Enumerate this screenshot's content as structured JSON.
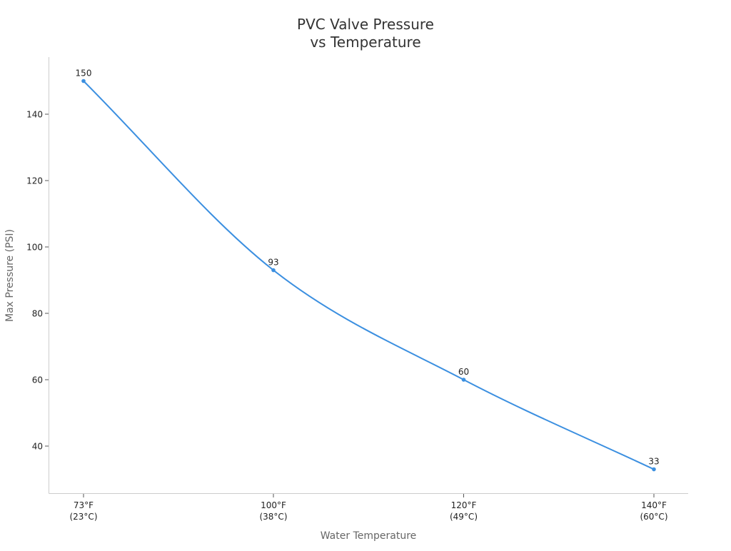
{
  "chart_data": {
    "type": "line",
    "title": "PVC Valve Pressure\nvs Temperature",
    "title_lines": [
      "PVC Valve Pressure",
      "vs Temperature"
    ],
    "xlabel": "Water Temperature",
    "ylabel": "Max Pressure (PSI)",
    "categories": [
      "73°F\n(23°C)",
      "100°F\n(38°C)",
      "120°F\n(49°C)",
      "140°F\n(60°C)"
    ],
    "category_lines": [
      [
        "73°F",
        "(23°C)"
      ],
      [
        "100°F",
        "(38°C)"
      ],
      [
        "120°F",
        "(49°C)"
      ],
      [
        "140°F",
        "(60°C)"
      ]
    ],
    "series": [
      {
        "name": "Max Pressure (PSI)",
        "values": [
          150,
          93,
          60,
          33
        ],
        "color": "#3b8fe0"
      }
    ],
    "data_labels": [
      "150",
      "93",
      "60",
      "33"
    ],
    "yticks": [
      40,
      60,
      80,
      100,
      120,
      140
    ],
    "ylim": [
      26.5,
      156.5
    ],
    "grid": false,
    "legend": "none",
    "smooth": true
  },
  "colors": {
    "line": "#3b8fe0",
    "axis": "#cccccc",
    "tick_text": "#222222",
    "axis_label": "#666666",
    "title": "#333333"
  }
}
